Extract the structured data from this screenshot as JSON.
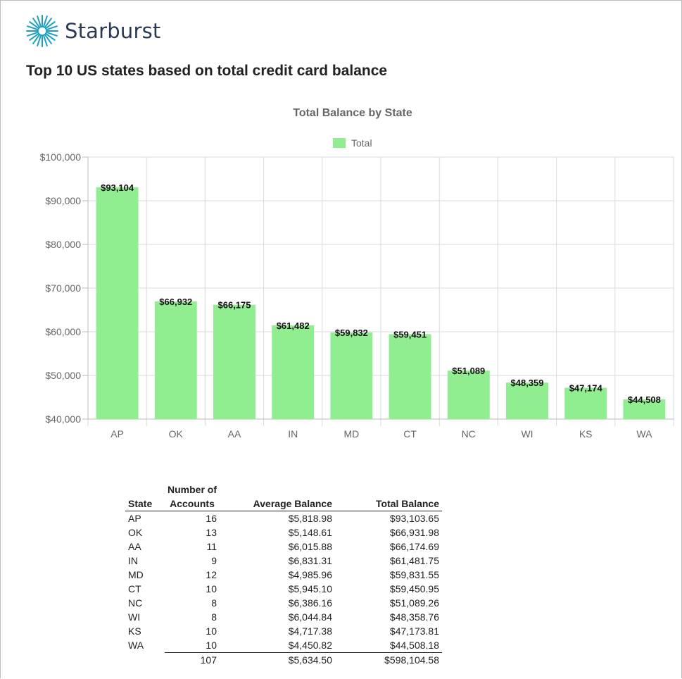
{
  "brand": {
    "name": "Starburst",
    "logo_icon": "starburst-icon",
    "logo_color": "#1a9fc4",
    "text_color": "#2a3a55"
  },
  "page": {
    "title": "Top 10 US states based on total credit card balance"
  },
  "chart_data": {
    "type": "bar",
    "title": "Total Balance by State",
    "legend": {
      "label": "Total",
      "position": "top-center"
    },
    "color": "#90ee90",
    "categories": [
      "AP",
      "OK",
      "AA",
      "IN",
      "MD",
      "CT",
      "NC",
      "WI",
      "KS",
      "WA"
    ],
    "series": [
      {
        "name": "Total",
        "values": [
          93103.65,
          66931.98,
          66174.69,
          61481.75,
          59831.55,
          59450.95,
          51089.26,
          48358.76,
          47173.81,
          44508.18
        ]
      }
    ],
    "data_labels": [
      "$93,104",
      "$66,932",
      "$66,175",
      "$61,482",
      "$59,832",
      "$59,451",
      "$51,089",
      "$48,359",
      "$47,174",
      "$44,508"
    ],
    "ylim": [
      40000,
      100000
    ],
    "yticks": [
      40000,
      50000,
      60000,
      70000,
      80000,
      90000,
      100000
    ],
    "ytick_labels": [
      "$40,000",
      "$50,000",
      "$60,000",
      "$70,000",
      "$80,000",
      "$90,000",
      "$100,000"
    ],
    "grid": true
  },
  "table": {
    "headers": {
      "state": "State",
      "accounts_line1": "Number of",
      "accounts_line2": "Accounts",
      "average": "Average Balance",
      "total": "Total Balance"
    },
    "rows": [
      {
        "state": "AP",
        "accounts": "16",
        "average": "$5,818.98",
        "total": "$93,103.65"
      },
      {
        "state": "OK",
        "accounts": "13",
        "average": "$5,148.61",
        "total": "$66,931.98"
      },
      {
        "state": "AA",
        "accounts": "11",
        "average": "$6,015.88",
        "total": "$66,174.69"
      },
      {
        "state": "IN",
        "accounts": "9",
        "average": "$6,831.31",
        "total": "$61,481.75"
      },
      {
        "state": "MD",
        "accounts": "12",
        "average": "$4,985.96",
        "total": "$59,831.55"
      },
      {
        "state": "CT",
        "accounts": "10",
        "average": "$5,945.10",
        "total": "$59,450.95"
      },
      {
        "state": "NC",
        "accounts": "8",
        "average": "$6,386.16",
        "total": "$51,089.26"
      },
      {
        "state": "WI",
        "accounts": "8",
        "average": "$6,044.84",
        "total": "$48,358.76"
      },
      {
        "state": "KS",
        "accounts": "10",
        "average": "$4,717.38",
        "total": "$47,173.81"
      },
      {
        "state": "WA",
        "accounts": "10",
        "average": "$4,450.82",
        "total": "$44,508.18"
      }
    ],
    "totals": {
      "accounts": "107",
      "average": "$5,634.50",
      "total": "$598,104.58"
    }
  }
}
